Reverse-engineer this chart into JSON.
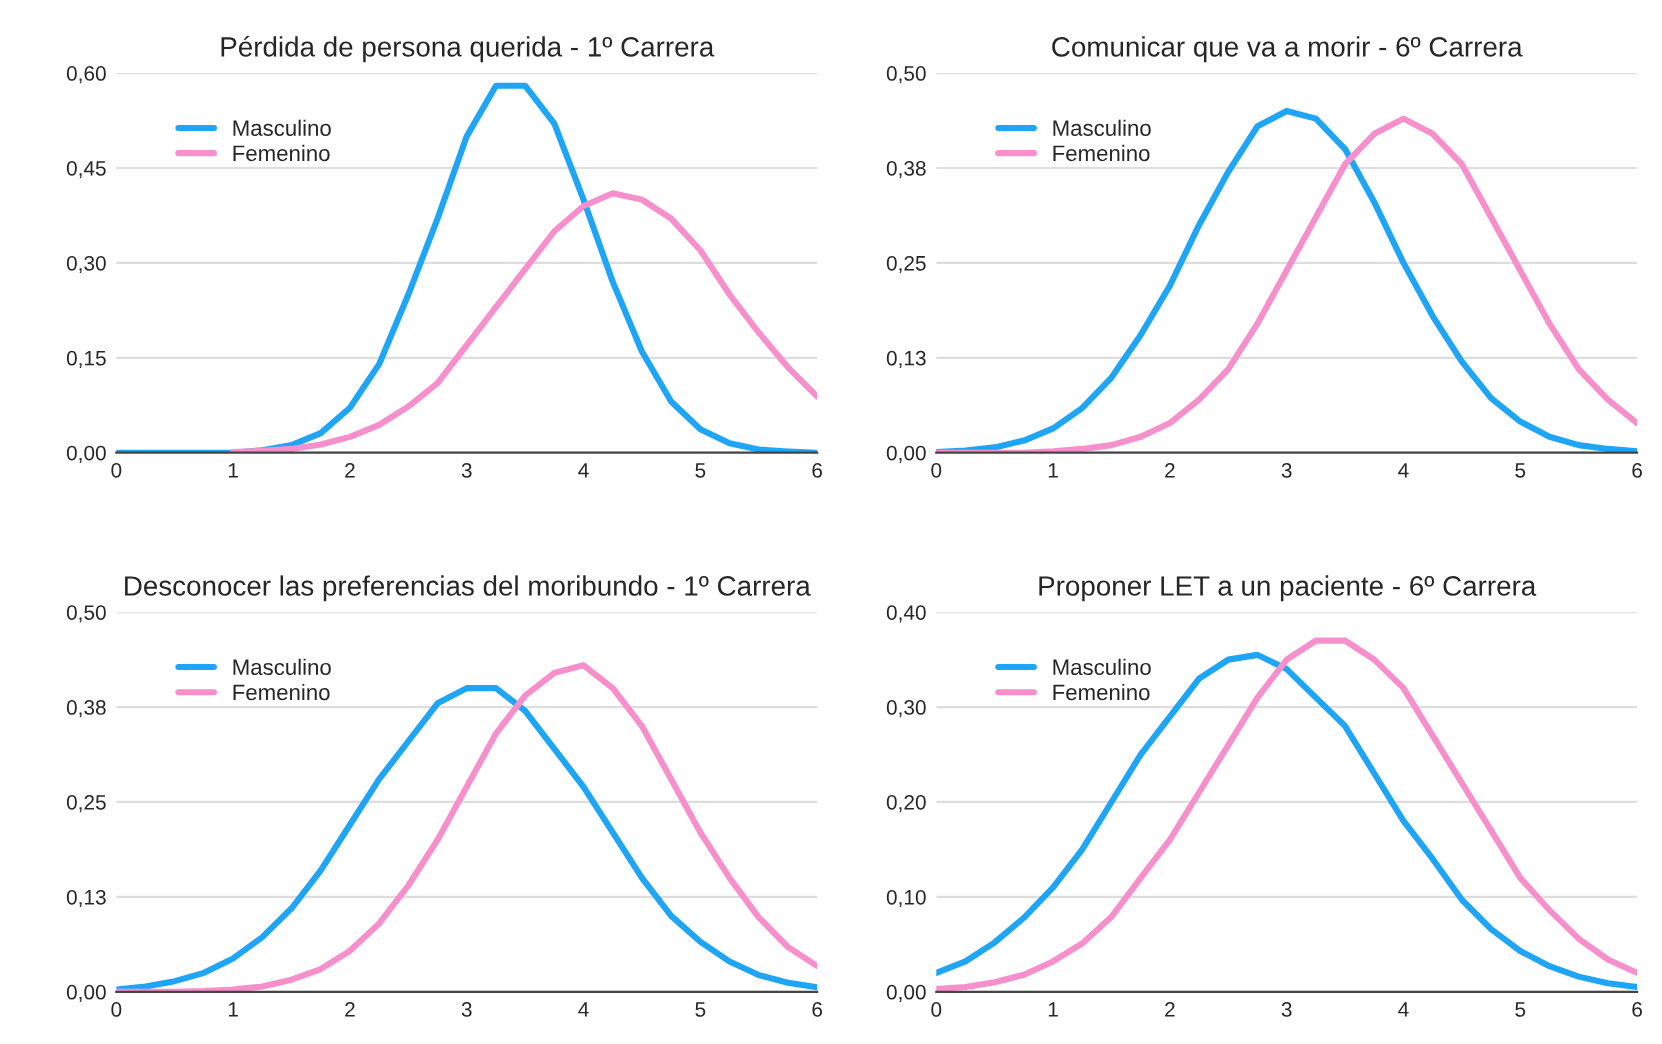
{
  "chart_data": [
    {
      "type": "line",
      "title": "Pérdida de persona querida - 1º Carrera",
      "x": [
        0,
        0.25,
        0.5,
        0.75,
        1,
        1.25,
        1.5,
        1.75,
        2,
        2.25,
        2.5,
        2.75,
        3,
        3.25,
        3.5,
        3.75,
        4,
        4.25,
        4.5,
        4.75,
        5,
        5.25,
        5.5,
        5.75,
        6
      ],
      "series": [
        {
          "name": "Masculino",
          "color": "#1fa5f5",
          "values": [
            0,
            0,
            0,
            0,
            0,
            0.004,
            0.012,
            0.031,
            0.071,
            0.14,
            0.25,
            0.37,
            0.5,
            0.58,
            0.58,
            0.52,
            0.4,
            0.27,
            0.16,
            0.081,
            0.037,
            0.015,
            0.005,
            0.002,
            0
          ]
        },
        {
          "name": "Femenino",
          "color": "#f78fcc",
          "values": [
            null,
            null,
            null,
            null,
            0.001,
            0.003,
            0.006,
            0.013,
            0.025,
            0.044,
            0.073,
            0.11,
            0.17,
            0.23,
            0.29,
            0.35,
            0.39,
            0.41,
            0.4,
            0.37,
            0.32,
            0.25,
            0.19,
            0.135,
            0.089
          ]
        }
      ],
      "xlim": [
        0,
        6
      ],
      "xticks": [
        0,
        1,
        2,
        3,
        4,
        5,
        6
      ],
      "ylim": [
        0,
        0.6
      ],
      "yticks": [
        {
          "value": 0,
          "label": "0,00"
        },
        {
          "value": 0.15,
          "label": "0,15"
        },
        {
          "value": 0.3,
          "label": "0,30"
        },
        {
          "value": 0.45,
          "label": "0,45"
        },
        {
          "value": 0.6,
          "label": "0,60"
        }
      ],
      "grid": "y",
      "legend": "top left"
    },
    {
      "type": "line",
      "title": "Comunicar que va a morir - 6º Carrera",
      "x": [
        0,
        0.25,
        0.5,
        0.75,
        1,
        1.25,
        1.5,
        1.75,
        2,
        2.25,
        2.5,
        2.75,
        3,
        3.25,
        3.5,
        3.75,
        4,
        4.25,
        4.5,
        4.75,
        5,
        5.25,
        5.5,
        5.75,
        6
      ],
      "series": [
        {
          "name": "Masculino",
          "color": "#1fa5f5",
          "values": [
            0.001,
            0.003,
            0.007,
            0.016,
            0.032,
            0.059,
            0.099,
            0.155,
            0.22,
            0.3,
            0.37,
            0.43,
            0.45,
            0.44,
            0.4,
            0.33,
            0.25,
            0.18,
            0.12,
            0.072,
            0.041,
            0.021,
            0.01,
            0.005,
            0.002
          ]
        },
        {
          "name": "Femenino",
          "color": "#f78fcc",
          "values": [
            0,
            0,
            0,
            0,
            0.002,
            0.005,
            0.01,
            0.021,
            0.039,
            0.07,
            0.11,
            0.17,
            0.24,
            0.31,
            0.38,
            0.42,
            0.44,
            0.42,
            0.38,
            0.31,
            0.24,
            0.17,
            0.11,
            0.07,
            0.039
          ]
        }
      ],
      "xlim": [
        0,
        6
      ],
      "xticks": [
        0,
        1,
        2,
        3,
        4,
        5,
        6
      ],
      "ylim": [
        0,
        0.5
      ],
      "yticks": [
        {
          "value": 0,
          "label": "0,00"
        },
        {
          "value": 0.125,
          "label": "0,13"
        },
        {
          "value": 0.25,
          "label": "0,25"
        },
        {
          "value": 0.375,
          "label": "0,38"
        },
        {
          "value": 0.5,
          "label": "0,50"
        }
      ],
      "grid": "y",
      "legend": "top left"
    },
    {
      "type": "line",
      "title": "Desconocer las preferencias del moribundo - 1º Carrera",
      "x": [
        0,
        0.25,
        0.5,
        0.75,
        1,
        1.25,
        1.5,
        1.75,
        2,
        2.25,
        2.5,
        2.75,
        3,
        3.25,
        3.5,
        3.75,
        4,
        4.25,
        4.5,
        4.75,
        5,
        5.25,
        5.5,
        5.75,
        6
      ],
      "series": [
        {
          "name": "Masculino",
          "color": "#1fa5f5",
          "values": [
            0.003,
            0.007,
            0.014,
            0.025,
            0.044,
            0.072,
            0.11,
            0.16,
            0.22,
            0.28,
            0.33,
            0.38,
            0.4,
            0.4,
            0.37,
            0.32,
            0.27,
            0.21,
            0.15,
            0.1,
            0.066,
            0.04,
            0.022,
            0.012,
            0.006
          ]
        },
        {
          "name": "Femenino",
          "color": "#f78fcc",
          "values": [
            0,
            0,
            0,
            0.001,
            0.003,
            0.007,
            0.016,
            0.03,
            0.054,
            0.09,
            0.14,
            0.2,
            0.27,
            0.34,
            0.39,
            0.42,
            0.43,
            0.4,
            0.35,
            0.28,
            0.21,
            0.15,
            0.098,
            0.059,
            0.034
          ]
        }
      ],
      "xlim": [
        0,
        6
      ],
      "xticks": [
        0,
        1,
        2,
        3,
        4,
        5,
        6
      ],
      "ylim": [
        0,
        0.5
      ],
      "yticks": [
        {
          "value": 0,
          "label": "0,00"
        },
        {
          "value": 0.125,
          "label": "0,13"
        },
        {
          "value": 0.25,
          "label": "0,25"
        },
        {
          "value": 0.375,
          "label": "0,38"
        },
        {
          "value": 0.5,
          "label": "0,50"
        }
      ],
      "grid": "y",
      "legend": "top left"
    },
    {
      "type": "line",
      "title": "Proponer LET a un paciente - 6º Carrera",
      "x": [
        0,
        0.25,
        0.5,
        0.75,
        1,
        1.25,
        1.5,
        1.75,
        2,
        2.25,
        2.5,
        2.75,
        3,
        3.25,
        3.5,
        3.75,
        4,
        4.25,
        4.5,
        4.75,
        5,
        5.25,
        5.5,
        5.75,
        6
      ],
      "series": [
        {
          "name": "Masculino",
          "color": "#1fa5f5",
          "values": [
            0.02,
            0.032,
            0.052,
            0.078,
            0.11,
            0.15,
            0.2,
            0.25,
            0.29,
            0.33,
            0.35,
            0.355,
            0.34,
            0.31,
            0.28,
            0.23,
            0.18,
            0.14,
            0.097,
            0.066,
            0.043,
            0.027,
            0.016,
            0.009,
            0.005
          ]
        },
        {
          "name": "Femenino",
          "color": "#f78fcc",
          "values": [
            0.003,
            0.005,
            0.01,
            0.018,
            0.032,
            0.051,
            0.079,
            0.12,
            0.16,
            0.21,
            0.26,
            0.31,
            0.35,
            0.37,
            0.37,
            0.35,
            0.32,
            0.27,
            0.22,
            0.17,
            0.12,
            0.086,
            0.056,
            0.034,
            0.02
          ]
        }
      ],
      "xlim": [
        0,
        6
      ],
      "xticks": [
        0,
        1,
        2,
        3,
        4,
        5,
        6
      ],
      "ylim": [
        0,
        0.4
      ],
      "yticks": [
        {
          "value": 0,
          "label": "0,00"
        },
        {
          "value": 0.1,
          "label": "0,10"
        },
        {
          "value": 0.2,
          "label": "0,20"
        },
        {
          "value": 0.3,
          "label": "0,30"
        },
        {
          "value": 0.4,
          "label": "0,40"
        }
      ],
      "grid": "y",
      "legend": "top left"
    }
  ]
}
